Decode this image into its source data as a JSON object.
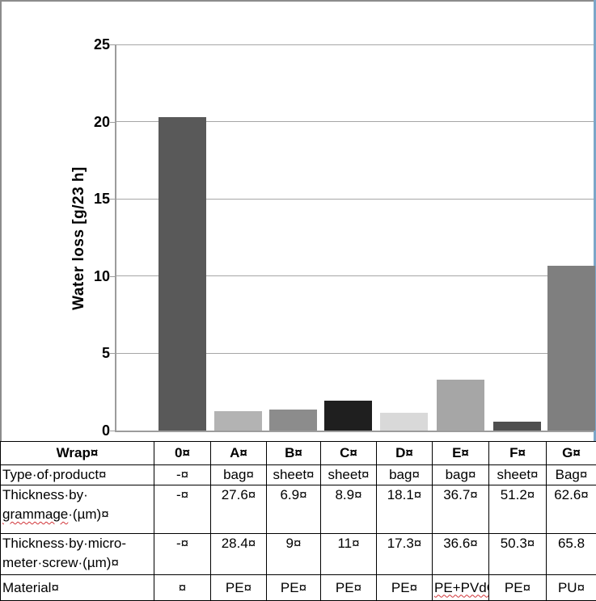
{
  "chart_data": {
    "type": "bar",
    "title": "",
    "ylabel": "Water loss [g/23 h]",
    "xlabel": "",
    "categories": [
      "0",
      "A",
      "B",
      "C",
      "D",
      "E",
      "F",
      "G"
    ],
    "values": [
      20.3,
      1.25,
      1.35,
      1.95,
      1.15,
      3.3,
      0.6,
      10.65
    ],
    "bar_colors": [
      "#595959",
      "#b3b3b3",
      "#8c8c8c",
      "#1f1f1f",
      "#d9d9d9",
      "#a6a6a6",
      "#4f4f4f",
      "#7f7f7f"
    ],
    "ylim": [
      0,
      25
    ],
    "yticks": [
      0,
      5,
      10,
      15,
      20,
      25
    ],
    "grid": true,
    "legend_position": "none",
    "colors": {
      "gridline": "#a6a6a6",
      "axis": "#9c9c9c",
      "frame_gray": "#8c8c8c",
      "frame_blue": "#7ca6c8",
      "squiggle_red": "#d13438"
    }
  },
  "table": {
    "header": [
      "Wrap¤",
      "0¤",
      "A¤",
      "B¤",
      "C¤",
      "D¤",
      "E¤",
      "F¤",
      "G¤"
    ],
    "rows": [
      {
        "label": "Type·of·product¤",
        "cells": [
          "-¤",
          "bag¤",
          "sheet¤",
          "sheet¤",
          "bag¤",
          "bag¤",
          "sheet¤",
          "Bag¤"
        ]
      },
      {
        "label_line1": "Thickness·by·",
        "squiggle_word": "grammage",
        "label_line2_rest": "·(µm)¤",
        "cells": [
          "-¤",
          "27.6¤",
          "6.9¤",
          "8.9¤",
          "18.1¤",
          "36.7¤",
          "51.2¤",
          "62.6¤"
        ]
      },
      {
        "label_line1": "Thickness·by·micro-",
        "label_line2": "meter·screw·(µm)¤",
        "cells": [
          "-¤",
          "28.4¤",
          "9¤",
          "11¤",
          "17.3¤",
          "36.6¤",
          "50.3¤",
          "65.8"
        ]
      },
      {
        "label": "Material¤",
        "cells": [
          "¤",
          "PE¤",
          "PE¤",
          "PE¤",
          "PE¤",
          "PE+PVdC",
          "PE¤",
          "PU¤"
        ]
      }
    ]
  }
}
